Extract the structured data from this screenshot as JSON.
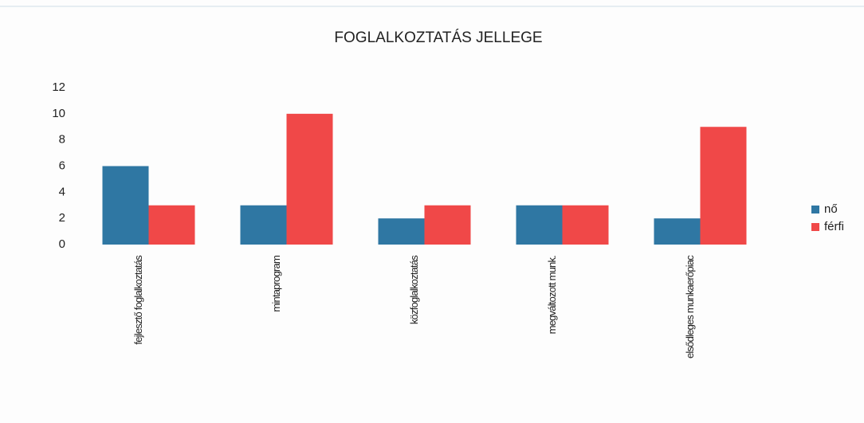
{
  "chart_data": {
    "type": "bar",
    "title": "FOGLALKOZTATÁS JELLEGE",
    "categories": [
      "fejlesztő foglalkoztatás",
      "mintaprogram",
      "közfoglalkoztatás",
      "megváltozott munk.",
      "elsődleges munkaerőpiac"
    ],
    "series": [
      {
        "name": "nő",
        "color": "#2f77a3",
        "values": [
          6,
          3,
          2,
          3,
          2
        ]
      },
      {
        "name": "férfi",
        "color": "#f04848",
        "values": [
          3,
          10,
          3,
          3,
          9
        ]
      }
    ],
    "ylim": [
      0,
      12
    ],
    "yticks": [
      0,
      2,
      4,
      6,
      8,
      10,
      12
    ],
    "grid": false,
    "legend": "right"
  }
}
